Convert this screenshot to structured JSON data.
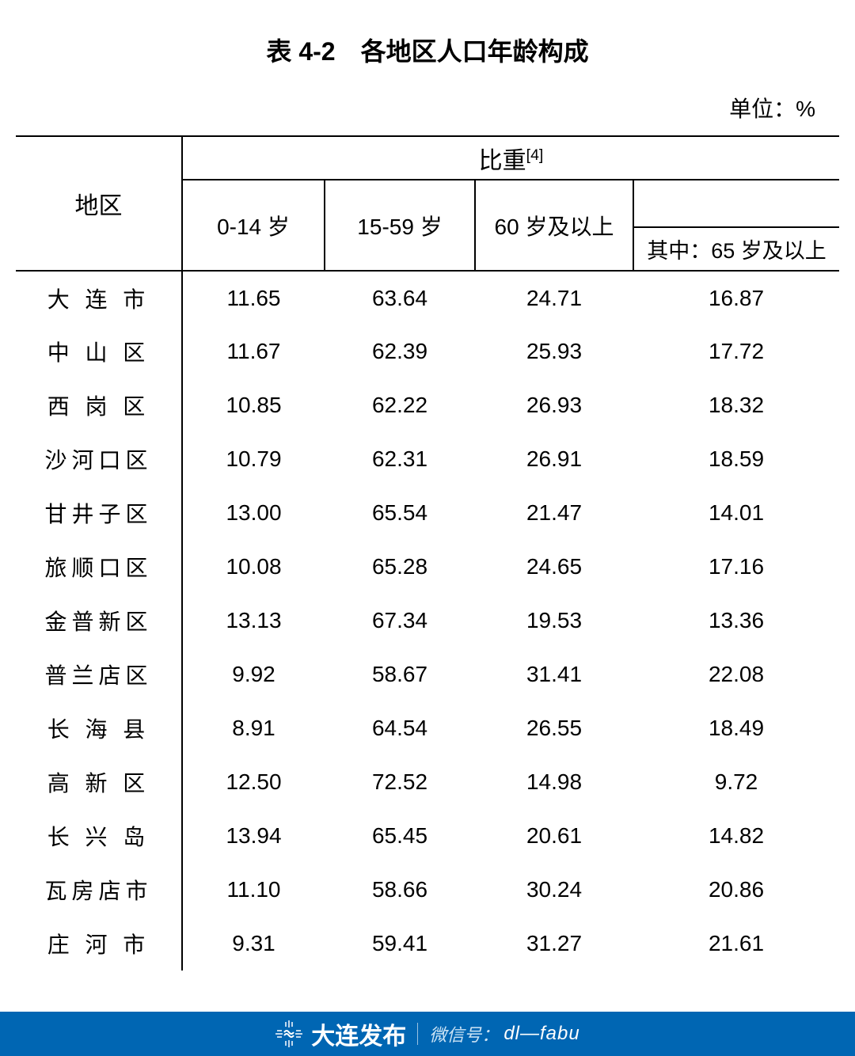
{
  "title": "表 4-2　各地区人口年龄构成",
  "unit_label": "单位：%",
  "table": {
    "headers": {
      "region": "地区",
      "weight_label": "比重",
      "weight_sup": "[4]",
      "col_0_14": "0-14 岁",
      "col_15_59": "15-59 岁",
      "col_60": "60 岁及以上",
      "col_65": "其中：65 岁及以上"
    },
    "rows": [
      {
        "region": "大 连 市",
        "v1": "11.65",
        "v2": "63.64",
        "v3": "24.71",
        "v4": "16.87"
      },
      {
        "region": "中 山 区",
        "v1": "11.67",
        "v2": "62.39",
        "v3": "25.93",
        "v4": "17.72"
      },
      {
        "region": "西 岗 区",
        "v1": "10.85",
        "v2": "62.22",
        "v3": "26.93",
        "v4": "18.32"
      },
      {
        "region": "沙河口区",
        "v1": "10.79",
        "v2": "62.31",
        "v3": "26.91",
        "v4": "18.59"
      },
      {
        "region": "甘井子区",
        "v1": "13.00",
        "v2": "65.54",
        "v3": "21.47",
        "v4": "14.01"
      },
      {
        "region": "旅顺口区",
        "v1": "10.08",
        "v2": "65.28",
        "v3": "24.65",
        "v4": "17.16"
      },
      {
        "region": "金普新区",
        "v1": "13.13",
        "v2": "67.34",
        "v3": "19.53",
        "v4": "13.36"
      },
      {
        "region": "普兰店区",
        "v1": "9.92",
        "v2": "58.67",
        "v3": "31.41",
        "v4": "22.08"
      },
      {
        "region": "长 海 县",
        "v1": "8.91",
        "v2": "64.54",
        "v3": "26.55",
        "v4": "18.49"
      },
      {
        "region": "高 新 区",
        "v1": "12.50",
        "v2": "72.52",
        "v3": "14.98",
        "v4": "9.72"
      },
      {
        "region": "长 兴 岛",
        "v1": "13.94",
        "v2": "65.45",
        "v3": "20.61",
        "v4": "14.82"
      },
      {
        "region": "瓦房店市",
        "v1": "11.10",
        "v2": "58.66",
        "v3": "30.24",
        "v4": "20.86"
      },
      {
        "region": "庄 河 市",
        "v1": "9.31",
        "v2": "59.41",
        "v3": "31.27",
        "v4": "21.61"
      }
    ]
  },
  "footer": {
    "brand": "大连发布",
    "wechat_label": "微信号：",
    "wechat_id": "dl—fabu"
  },
  "colors": {
    "banner_bg": "#0066b3",
    "text": "#000000",
    "banner_text": "#ffffff"
  }
}
